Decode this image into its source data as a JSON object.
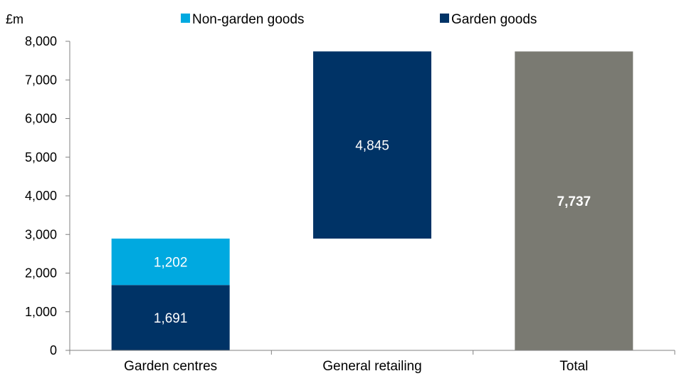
{
  "chart_data": {
    "type": "bar",
    "subtype": "stacked waterfall",
    "unit_label": "£m",
    "categories": [
      "Garden centres",
      "General retailing",
      "Total"
    ],
    "ylim": [
      0,
      8000
    ],
    "yticks": [
      0,
      1000,
      2000,
      3000,
      4000,
      5000,
      6000,
      7000,
      8000
    ],
    "ytick_labels": [
      "0",
      "1,000",
      "2,000",
      "3,000",
      "4,000",
      "5,000",
      "6,000",
      "7,000",
      "8,000"
    ],
    "legend_position": "top",
    "legend": [
      {
        "name": "Non-garden goods",
        "color": "#00a9e0"
      },
      {
        "name": "Garden goods",
        "color": "#003366"
      }
    ],
    "grid": false,
    "segments": [
      {
        "category": "Garden centres",
        "series": "Garden goods",
        "base": 0,
        "value": 1691,
        "label": "1,691",
        "color": "#003366",
        "bold": false
      },
      {
        "category": "Garden centres",
        "series": "Non-garden goods",
        "base": 1691,
        "value": 1202,
        "label": "1,202",
        "color": "#00a9e0",
        "bold": false
      },
      {
        "category": "General retailing",
        "series": "Garden goods",
        "base": 2893,
        "value": 4845,
        "label": "4,845",
        "color": "#003366",
        "bold": false
      },
      {
        "category": "Total",
        "series": "Total",
        "base": 0,
        "value": 7737,
        "label": "7,737",
        "color": "#7a7a72",
        "bold": true
      }
    ]
  }
}
